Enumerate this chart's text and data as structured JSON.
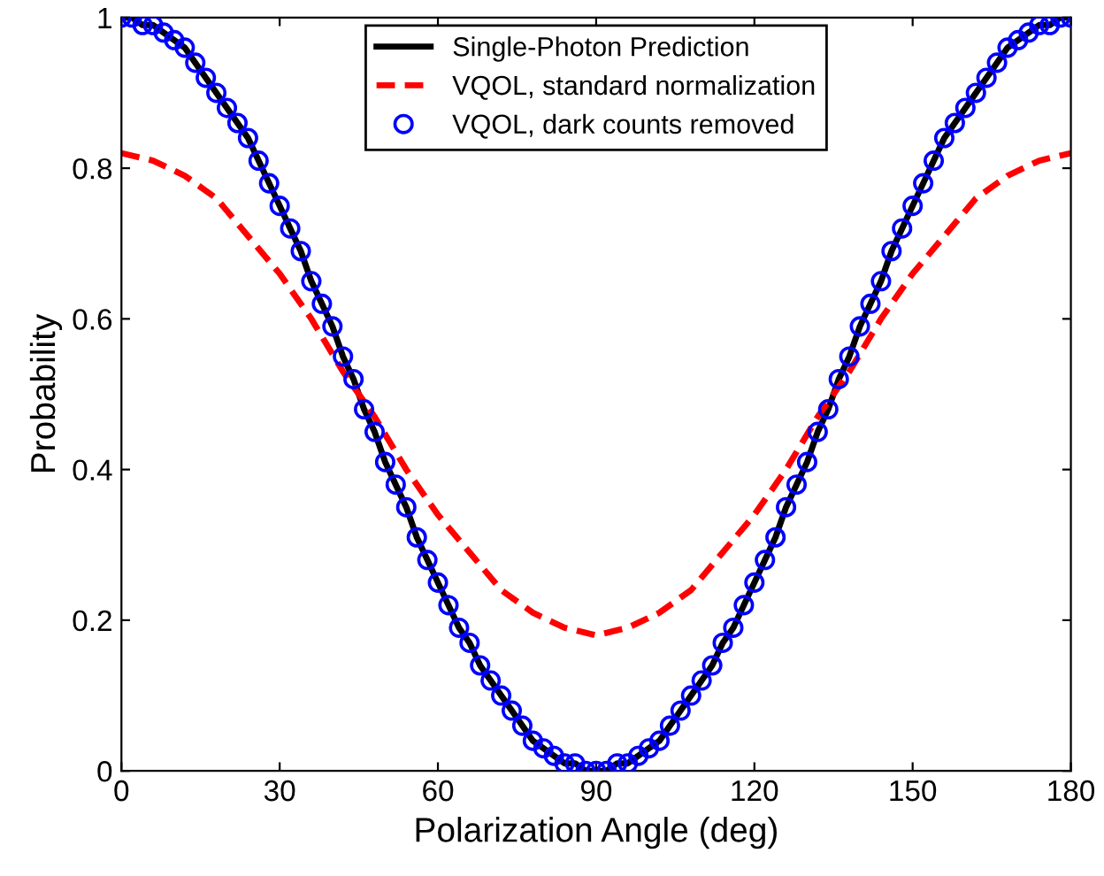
{
  "chart_data": {
    "type": "line",
    "xlabel": "Polarization Angle (deg)",
    "ylabel": "Probability",
    "x": [
      0,
      2,
      4,
      6,
      8,
      10,
      12,
      14,
      16,
      18,
      20,
      22,
      24,
      26,
      28,
      30,
      32,
      34,
      36,
      38,
      40,
      42,
      44,
      46,
      48,
      50,
      52,
      54,
      56,
      58,
      60,
      62,
      64,
      66,
      68,
      70,
      72,
      74,
      76,
      78,
      80,
      82,
      84,
      86,
      88,
      90,
      92,
      94,
      96,
      98,
      100,
      102,
      104,
      106,
      108,
      110,
      112,
      114,
      116,
      118,
      120,
      122,
      124,
      126,
      128,
      130,
      132,
      134,
      136,
      138,
      140,
      142,
      144,
      146,
      148,
      150,
      152,
      154,
      156,
      158,
      160,
      162,
      164,
      166,
      168,
      170,
      172,
      174,
      176,
      178,
      180
    ],
    "series": [
      {
        "name": "Single-Photon Prediction",
        "color": "#000000",
        "line_style": "solid",
        "marker": "none",
        "values": [
          1.0,
          1.0,
          0.99,
          0.99,
          0.98,
          0.97,
          0.96,
          0.94,
          0.92,
          0.9,
          0.88,
          0.86,
          0.84,
          0.81,
          0.78,
          0.75,
          0.72,
          0.69,
          0.65,
          0.62,
          0.59,
          0.55,
          0.52,
          0.48,
          0.45,
          0.41,
          0.38,
          0.35,
          0.31,
          0.28,
          0.25,
          0.22,
          0.19,
          0.17,
          0.14,
          0.12,
          0.1,
          0.08,
          0.06,
          0.04,
          0.03,
          0.02,
          0.01,
          0.01,
          0.0,
          0.0,
          0.0,
          0.01,
          0.01,
          0.02,
          0.03,
          0.04,
          0.06,
          0.08,
          0.1,
          0.12,
          0.14,
          0.17,
          0.19,
          0.22,
          0.25,
          0.28,
          0.31,
          0.35,
          0.38,
          0.41,
          0.45,
          0.48,
          0.52,
          0.55,
          0.59,
          0.62,
          0.65,
          0.69,
          0.72,
          0.75,
          0.78,
          0.81,
          0.84,
          0.86,
          0.88,
          0.9,
          0.92,
          0.94,
          0.96,
          0.97,
          0.98,
          0.99,
          0.99,
          1.0,
          1.0
        ]
      },
      {
        "name": "VQOL, standard normalization",
        "color": "#ff0000",
        "line_style": "dashed",
        "marker": "none",
        "x": [
          0,
          6,
          12,
          18,
          24,
          30,
          36,
          42,
          48,
          54,
          60,
          66,
          72,
          78,
          84,
          90,
          96,
          102,
          108,
          114,
          120,
          126,
          132,
          138,
          144,
          150,
          156,
          162,
          168,
          174,
          180
        ],
        "values": [
          0.82,
          0.81,
          0.79,
          0.76,
          0.71,
          0.66,
          0.6,
          0.53,
          0.47,
          0.4,
          0.34,
          0.29,
          0.24,
          0.21,
          0.19,
          0.18,
          0.19,
          0.21,
          0.24,
          0.29,
          0.34,
          0.4,
          0.47,
          0.53,
          0.6,
          0.66,
          0.71,
          0.76,
          0.79,
          0.81,
          0.82
        ]
      },
      {
        "name": "VQOL, dark counts removed",
        "type": "scatter",
        "color": "#0000ff",
        "marker": "circle",
        "values": [
          1.0,
          1.0,
          0.99,
          0.99,
          0.98,
          0.97,
          0.96,
          0.94,
          0.92,
          0.9,
          0.88,
          0.86,
          0.84,
          0.81,
          0.78,
          0.75,
          0.72,
          0.69,
          0.65,
          0.62,
          0.59,
          0.55,
          0.52,
          0.48,
          0.45,
          0.41,
          0.38,
          0.35,
          0.31,
          0.28,
          0.25,
          0.22,
          0.19,
          0.17,
          0.14,
          0.12,
          0.1,
          0.08,
          0.06,
          0.04,
          0.03,
          0.02,
          0.01,
          0.01,
          0.0,
          0.0,
          0.0,
          0.01,
          0.01,
          0.02,
          0.03,
          0.04,
          0.06,
          0.08,
          0.1,
          0.12,
          0.14,
          0.17,
          0.19,
          0.22,
          0.25,
          0.28,
          0.31,
          0.35,
          0.38,
          0.41,
          0.45,
          0.48,
          0.52,
          0.55,
          0.59,
          0.62,
          0.65,
          0.69,
          0.72,
          0.75,
          0.78,
          0.81,
          0.84,
          0.86,
          0.88,
          0.9,
          0.92,
          0.94,
          0.96,
          0.97,
          0.98,
          0.99,
          0.99,
          1.0,
          1.0
        ]
      }
    ],
    "xlim": [
      0,
      180
    ],
    "xticks": [
      0,
      30,
      60,
      90,
      120,
      150,
      180
    ],
    "ylim": [
      0,
      1
    ],
    "yticks": [
      0,
      0.2,
      0.4,
      0.6,
      0.8,
      1
    ],
    "grid": false,
    "legend": "top"
  }
}
